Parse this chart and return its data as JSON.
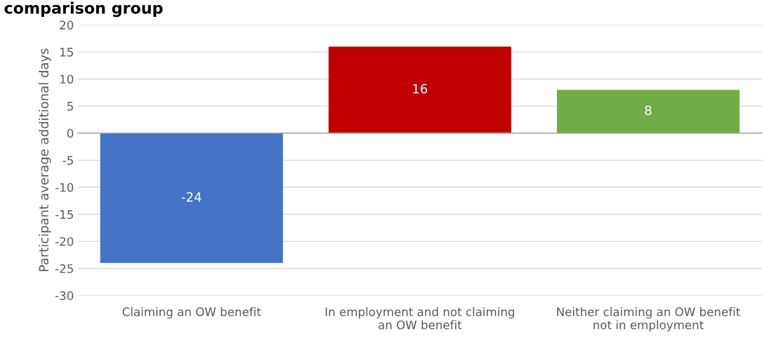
{
  "chart_data": {
    "type": "bar",
    "title": "comparison group",
    "ylabel": "Participant average additional days",
    "categories": [
      "Claiming an OW benefit",
      "In employment and not claiming an OW benefit",
      "Neither claiming an OW benefit not in employment"
    ],
    "values": [
      -24,
      16,
      8
    ],
    "colors": [
      "#4472c4",
      "#c00000",
      "#70ad47"
    ],
    "data_labels": true,
    "ylim": [
      -30,
      20
    ],
    "yticks": [
      -30,
      -25,
      -20,
      -15,
      -10,
      -5,
      0,
      5,
      10,
      15,
      20
    ],
    "grid": "y",
    "legend": false
  }
}
